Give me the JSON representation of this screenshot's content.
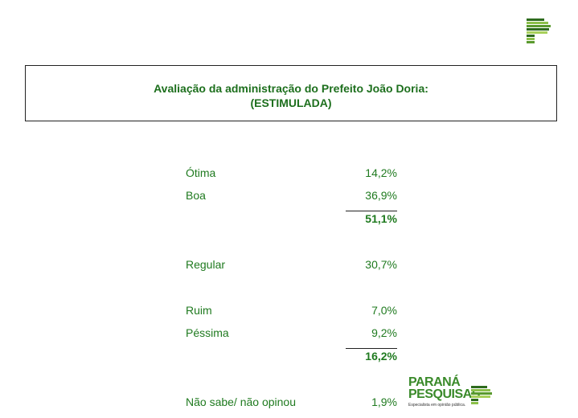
{
  "header": {
    "title_line1": "Avaliação da administração do Prefeito João Doria:",
    "title_line2": "(ESTIMULADA)"
  },
  "rows": [
    {
      "label": "Ótima",
      "value": "14,2%"
    },
    {
      "label": "Boa",
      "value": "36,9%"
    },
    {
      "label": "",
      "value": "51,1%"
    },
    {
      "label": "Regular",
      "value": "30,7%"
    },
    {
      "label": "Ruim",
      "value": "7,0%"
    },
    {
      "label": "Péssima",
      "value": "9,2%"
    },
    {
      "label": "",
      "value": "16,2%"
    },
    {
      "label": "Não sabe/ não opinou",
      "value": "1,9%"
    }
  ],
  "brand": {
    "line1": "PARANÁ",
    "line2": "PESQUISAS",
    "tagline": "Especialista em opinião pública."
  },
  "colors": {
    "text": "#1f7a1f",
    "logo_dark": "#2e6b1e",
    "logo_light": "#a8d05a"
  }
}
